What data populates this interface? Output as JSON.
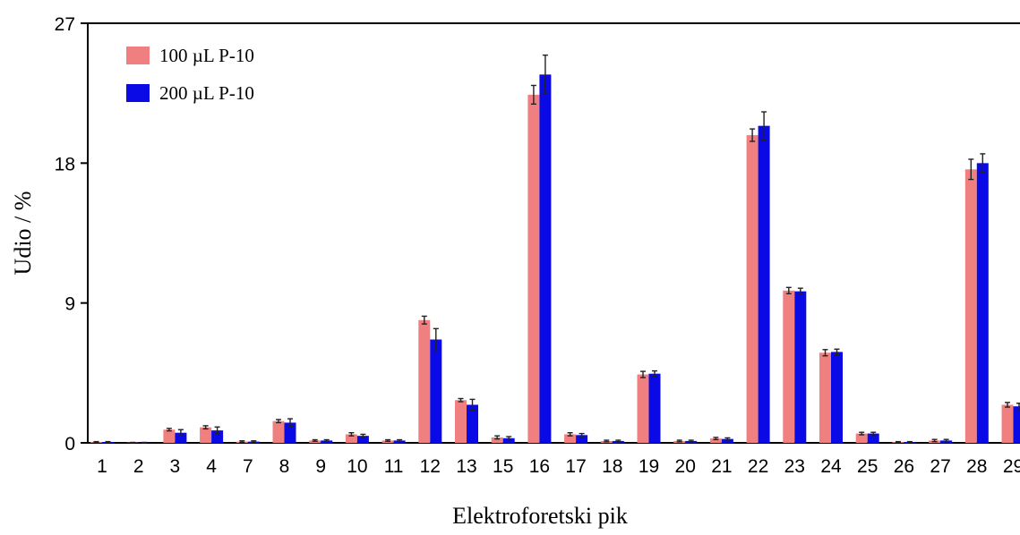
{
  "chart_data": {
    "type": "bar",
    "title": "",
    "xlabel": "Elektroforetski pik",
    "ylabel": "Udio / %",
    "ylim": [
      0,
      27
    ],
    "yticks": [
      0,
      9,
      18,
      27
    ],
    "grid": false,
    "legend_position": "top-left",
    "categories": [
      "1",
      "2",
      "3",
      "4",
      "7",
      "8",
      "9",
      "10",
      "11",
      "12",
      "13",
      "15",
      "16",
      "17",
      "18",
      "19",
      "20",
      "21",
      "22",
      "23",
      "24",
      "25",
      "26",
      "27",
      "28",
      "29"
    ],
    "series": [
      {
        "name": "100 µL P-10",
        "color": "#f08080",
        "values": [
          0.05,
          0.02,
          0.85,
          1.0,
          0.08,
          1.4,
          0.15,
          0.55,
          0.15,
          7.9,
          2.75,
          0.35,
          22.4,
          0.55,
          0.12,
          4.4,
          0.12,
          0.28,
          19.8,
          9.8,
          5.8,
          0.6,
          0.05,
          0.15,
          17.6,
          2.45
        ],
        "errors": [
          0.03,
          0.01,
          0.08,
          0.1,
          0.05,
          0.1,
          0.05,
          0.1,
          0.05,
          0.25,
          0.1,
          0.1,
          0.6,
          0.1,
          0.05,
          0.2,
          0.05,
          0.07,
          0.4,
          0.2,
          0.2,
          0.08,
          0.03,
          0.07,
          0.65,
          0.15
        ]
      },
      {
        "name": "200 µL P-10",
        "color": "#0a0ae6",
        "values": [
          0.05,
          0.02,
          0.65,
          0.8,
          0.08,
          1.3,
          0.15,
          0.45,
          0.15,
          6.65,
          2.45,
          0.3,
          23.7,
          0.5,
          0.12,
          4.45,
          0.12,
          0.25,
          20.4,
          9.75,
          5.85,
          0.6,
          0.05,
          0.15,
          18.0,
          2.35
        ],
        "errors": [
          0.03,
          0.01,
          0.2,
          0.22,
          0.05,
          0.25,
          0.05,
          0.1,
          0.05,
          0.7,
          0.35,
          0.1,
          1.25,
          0.1,
          0.05,
          0.18,
          0.05,
          0.07,
          0.9,
          0.2,
          0.18,
          0.08,
          0.03,
          0.07,
          0.6,
          0.2
        ]
      }
    ]
  }
}
